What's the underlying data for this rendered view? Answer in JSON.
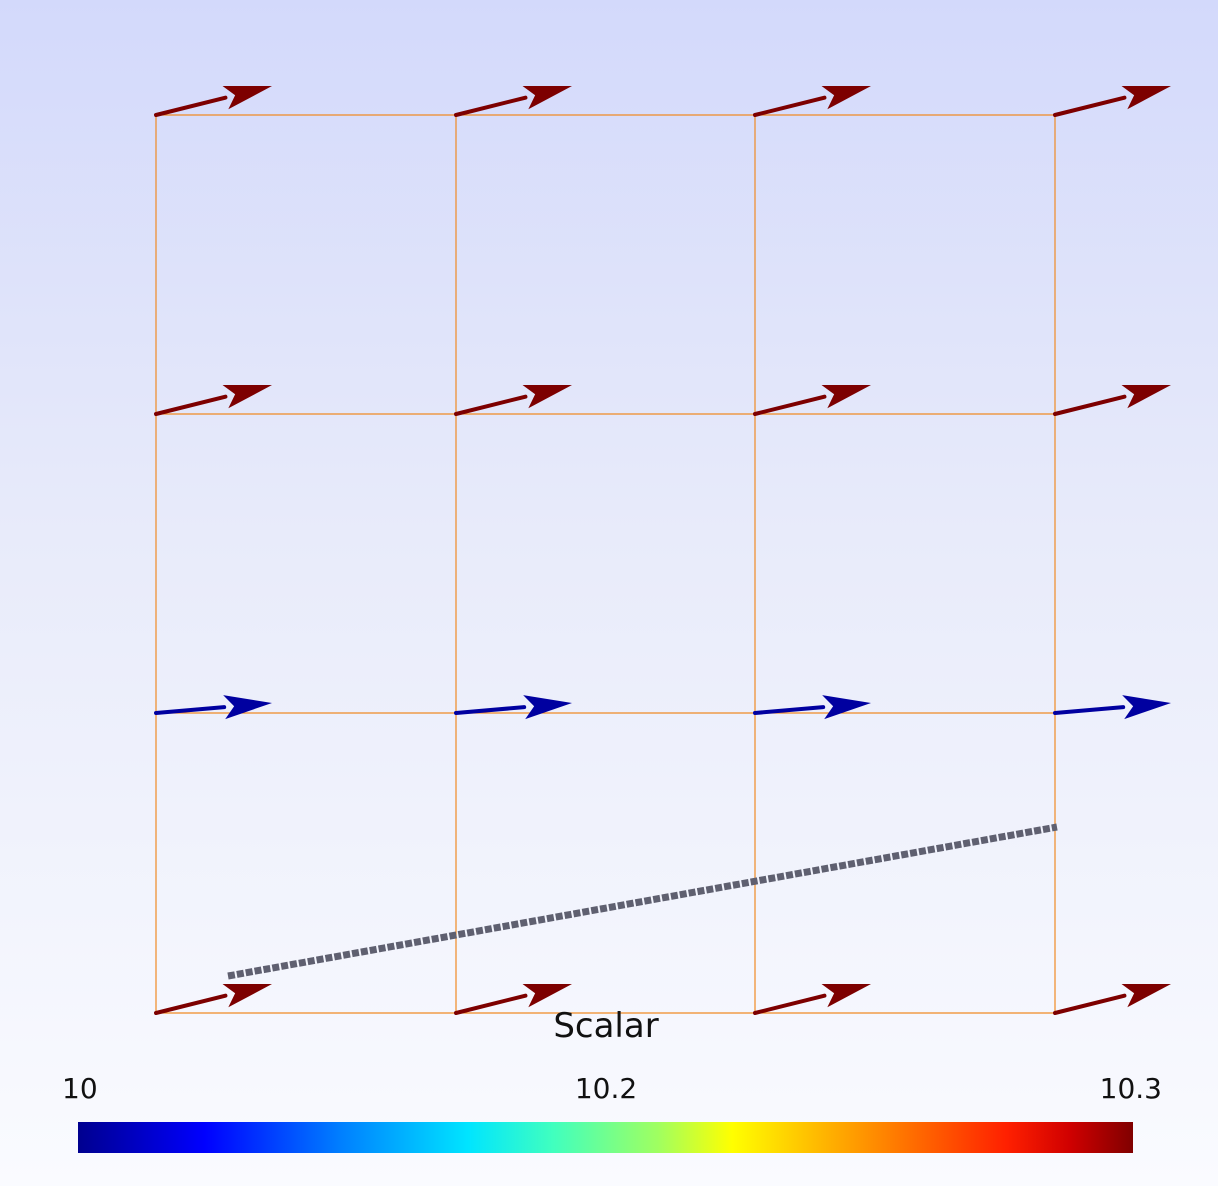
{
  "scene": {
    "background_top": "#d3d9fb",
    "background_bottom": "#fafbff",
    "grid_color": "#f08a24",
    "line_color": "#5f6070",
    "grid": {
      "columns": 3,
      "rows": 3
    },
    "arrow_rows": [
      {
        "scalar": 10.3,
        "color": "#7d0000"
      },
      {
        "scalar": 10.3,
        "color": "#7d0000"
      },
      {
        "scalar": 10,
        "color": "#0000a0"
      },
      {
        "scalar": 10.3,
        "color": "#7d0000"
      }
    ]
  },
  "colorbar": {
    "title": "Scalar",
    "min_label": "10",
    "mid_label": "10.2",
    "max_label": "10.3",
    "colormap": "jet"
  }
}
